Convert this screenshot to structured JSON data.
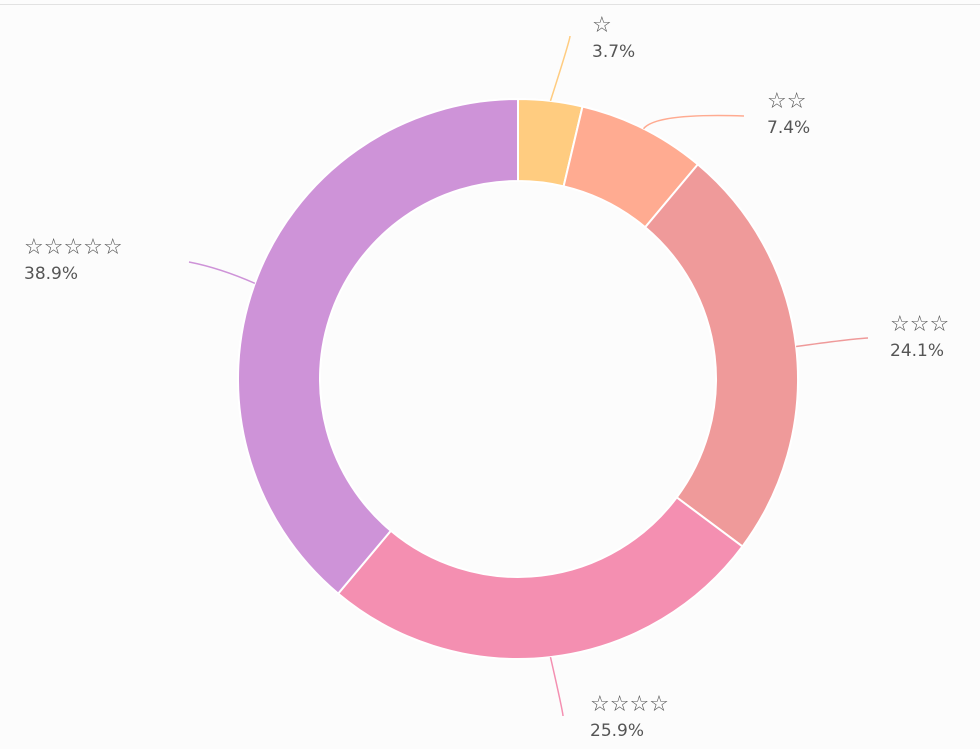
{
  "chart_data": {
    "type": "pie",
    "donut": true,
    "title": "",
    "slices": [
      {
        "label": "☆",
        "value": 3.7,
        "display": "3.7%",
        "color": "#ffcc80"
      },
      {
        "label": "☆☆",
        "value": 7.4,
        "display": "7.4%",
        "color": "#ffab91"
      },
      {
        "label": "☆☆☆",
        "value": 24.1,
        "display": "24.1%",
        "color": "#ef9a9a"
      },
      {
        "label": "☆☆☆☆",
        "value": 25.9,
        "display": "25.9%",
        "color": "#f48fb1"
      },
      {
        "label": "☆☆☆☆☆",
        "value": 38.9,
        "display": "38.9%",
        "color": "#ce93d8"
      }
    ],
    "start_angle": "12 o'clock",
    "direction": "clockwise",
    "legend": "none"
  },
  "colors": {
    "background": "#fcfcfc",
    "label_text": "#555555",
    "slice_separator": "#ffffff"
  }
}
